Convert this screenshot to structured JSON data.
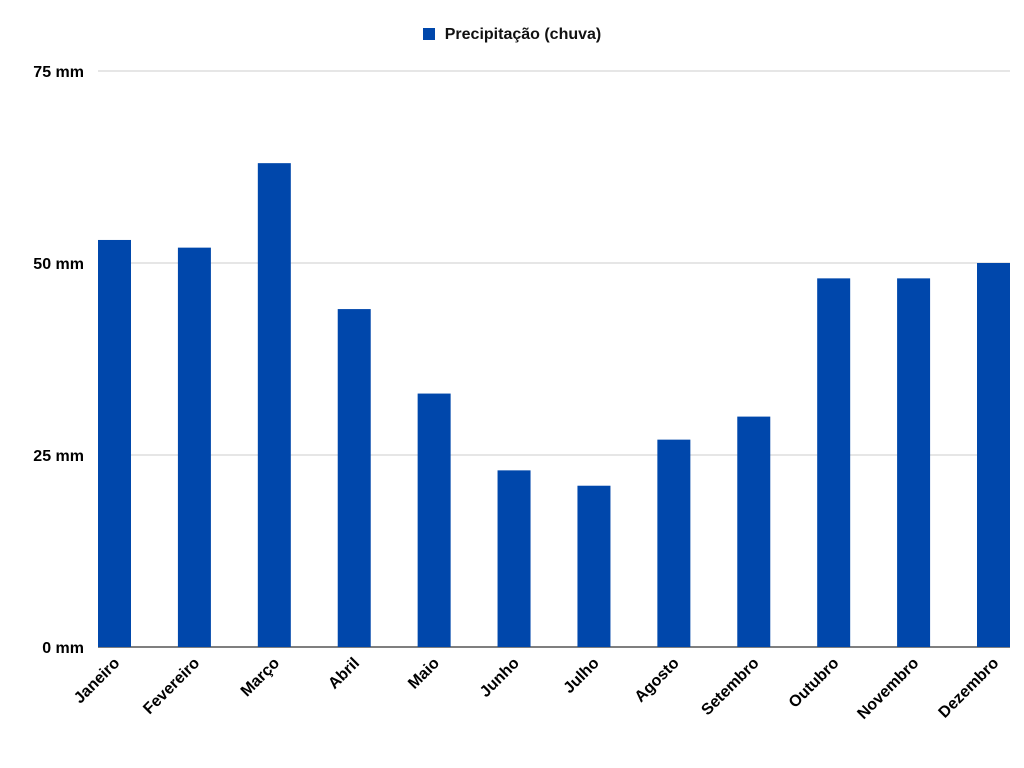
{
  "chart_data": {
    "type": "bar",
    "categories": [
      "Janeiro",
      "Fevereiro",
      "Março",
      "Abril",
      "Maio",
      "Junho",
      "Julho",
      "Agosto",
      "Setembro",
      "Outubro",
      "Novembro",
      "Dezembro"
    ],
    "series": [
      {
        "name": "Precipitação (chuva)",
        "values": [
          53,
          52,
          63,
          44,
          33,
          23,
          21,
          27,
          30,
          48,
          48,
          50
        ],
        "color": "#0047AB"
      }
    ],
    "yticks": [
      "0 mm",
      "25 mm",
      "50 mm",
      "75 mm"
    ],
    "ylim": [
      0,
      75
    ],
    "grid": true,
    "legend_position": "top-center"
  }
}
